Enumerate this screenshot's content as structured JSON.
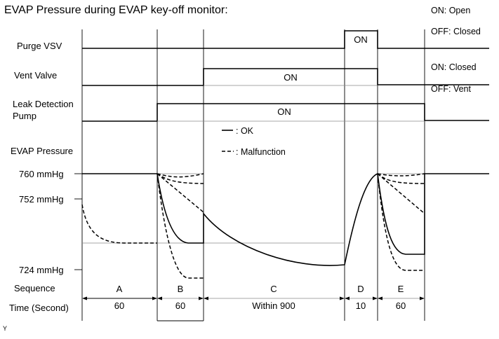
{
  "title": "EVAP Pressure during EVAP key-off monitor:",
  "rows": {
    "purge_vsv": {
      "label": "Purge VSV",
      "on_label": "ON"
    },
    "vent_valve": {
      "label": "Vent Valve",
      "on_label": "ON"
    },
    "leak_pump": {
      "label_line1": "Leak Detection",
      "label_line2": "Pump",
      "on_label": "ON"
    },
    "evap_pressure": {
      "label": "EVAP Pressure"
    }
  },
  "legend": {
    "purge": {
      "on": "ON: Open",
      "off": "OFF: Closed"
    },
    "vent": {
      "on": "ON: Closed",
      "off": "OFF: Vent"
    },
    "ok": "- : OK",
    "malfunction": "- - - : Malfunction"
  },
  "pressure_ticks": [
    "760 mmHg",
    "752 mmHg",
    "724 mmHg"
  ],
  "sequence": {
    "label": "Sequence",
    "steps": [
      "A",
      "B",
      "C",
      "D",
      "E"
    ]
  },
  "time": {
    "label": "Time (Second)",
    "values": [
      "60",
      "60",
      "Within 900",
      "10",
      "60"
    ]
  },
  "footnote": "Y"
}
